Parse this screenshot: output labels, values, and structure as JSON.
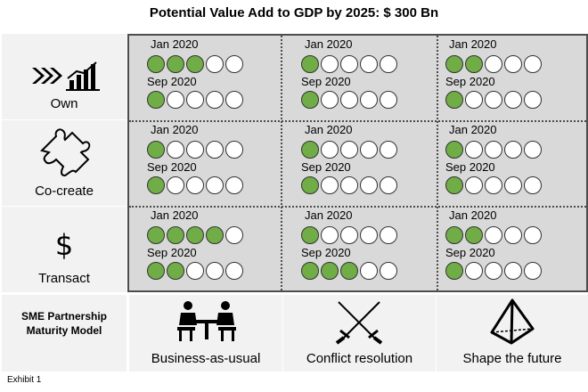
{
  "title": "Potential Value Add to GDP by 2025: $ 300 Bn",
  "rows": [
    {
      "label": "Own",
      "icon": "fast-forward-growth-chart-icon"
    },
    {
      "label": "Co-create",
      "icon": "puzzle-piece-icon"
    },
    {
      "label": "Transact",
      "icon": "dollar-sign-icon"
    }
  ],
  "periods": [
    "Jan 2020",
    "Sep 2020"
  ],
  "scale_max": 5,
  "matrix": [
    [
      {
        "jan": 3,
        "sep": 1
      },
      {
        "jan": 1,
        "sep": 1
      },
      {
        "jan": 2,
        "sep": 1
      }
    ],
    [
      {
        "jan": 1,
        "sep": 1
      },
      {
        "jan": 1,
        "sep": 1
      },
      {
        "jan": 1,
        "sep": 1
      }
    ],
    [
      {
        "jan": 4,
        "sep": 2
      },
      {
        "jan": 1,
        "sep": 3
      },
      {
        "jan": 2,
        "sep": 1
      }
    ]
  ],
  "colors": {
    "filled": "#70ad47",
    "empty": "#ffffff",
    "grid": "#d9d9d9",
    "label_bg": "#f2f2f2"
  },
  "bottom": {
    "model_label": "SME Partnership Maturity Model",
    "stages": [
      {
        "label": "Business-as-usual",
        "icon": "meeting-table-icon"
      },
      {
        "label": "Conflict resolution",
        "icon": "crossed-swords-icon"
      },
      {
        "label": "Shape the future",
        "icon": "pyramid-icon"
      }
    ]
  },
  "footnote": "Exhibit 1"
}
